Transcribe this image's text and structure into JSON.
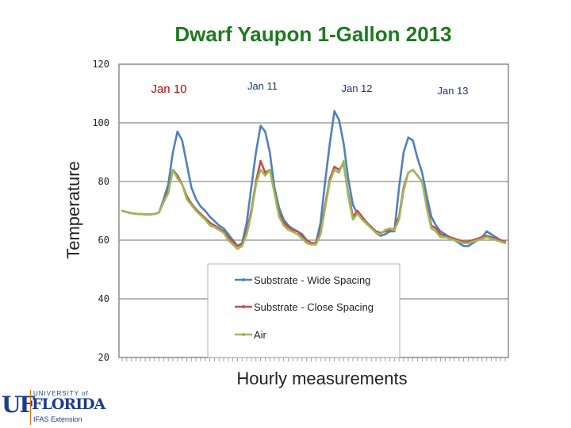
{
  "chart_data": {
    "type": "line",
    "title": "Dwarf Yaupon 1-Gallon 2013",
    "xlabel": "Hourly measurements",
    "ylabel": "Temperature",
    "ylim": [
      20,
      120
    ],
    "yticks": [
      "120",
      "100",
      "80",
      "60",
      "40",
      "20"
    ],
    "day_labels": [
      "Jan 10",
      "Jan 11",
      "Jan 12",
      "Jan 13"
    ],
    "grid": true,
    "legend_position": "center-bottom",
    "hours": 84,
    "series": [
      {
        "name": "Substrate - Wide Spacing",
        "color": "#4f81bd",
        "values": [
          70,
          69.6,
          69.2,
          69,
          68.9,
          68.8,
          68.8,
          68.9,
          69.5,
          74,
          79,
          90,
          97,
          94,
          86,
          78,
          74,
          71.5,
          70,
          68,
          66.5,
          65,
          64,
          62,
          60,
          58,
          59,
          66,
          78,
          90,
          99,
          97,
          90,
          78,
          71,
          67,
          65,
          63.8,
          63,
          62,
          60,
          59,
          59,
          66,
          80,
          93,
          104,
          101,
          93,
          81,
          72,
          69,
          67.5,
          66,
          64.5,
          62.5,
          61.5,
          62,
          63,
          63,
          78,
          90,
          95,
          94,
          88,
          83,
          75,
          68,
          65,
          63,
          62,
          61,
          60,
          59,
          58,
          58,
          59,
          60,
          61,
          63,
          62,
          61,
          60,
          59
        ]
      },
      {
        "name": "Substrate - Close Spacing",
        "color": "#c0504d",
        "values": [
          70,
          69.6,
          69.2,
          69,
          68.9,
          68.8,
          68.8,
          68.9,
          69.5,
          73,
          77,
          84,
          82,
          79,
          75,
          72.5,
          70.5,
          69,
          67.5,
          66,
          65,
          64,
          63,
          61,
          59.5,
          58,
          58.5,
          63,
          70,
          80,
          87,
          83,
          84,
          77,
          69,
          66,
          64.5,
          63.5,
          63,
          61.5,
          60,
          59,
          59,
          63,
          72,
          81,
          85,
          84,
          86,
          76,
          68,
          70,
          68,
          66,
          64.5,
          63,
          62.5,
          63,
          63.5,
          64,
          68,
          78,
          83,
          84,
          82,
          80,
          72,
          65,
          64,
          62,
          61.5,
          61,
          60.5,
          60,
          59.5,
          59.5,
          60,
          60.5,
          61,
          61.5,
          61,
          60.5,
          60,
          59.5
        ]
      },
      {
        "name": "Air",
        "color": "#9bbb59",
        "values": [
          70,
          69.6,
          69.2,
          69,
          68.9,
          68.8,
          68.8,
          68.9,
          69.5,
          73,
          76,
          84,
          81,
          79,
          74,
          72,
          70,
          68.5,
          67,
          65,
          64.5,
          63.5,
          62.5,
          60,
          58.5,
          57,
          58,
          62,
          69,
          79,
          84,
          82,
          84,
          76,
          68,
          65,
          63.5,
          62.8,
          62,
          60.5,
          59,
          58.5,
          58.5,
          62,
          71,
          80,
          84,
          83,
          87,
          75,
          67,
          69,
          67,
          65.5,
          64,
          62.5,
          62,
          63.5,
          64,
          63.5,
          67,
          77,
          83,
          84,
          82,
          80,
          71,
          64,
          63,
          61,
          61,
          60.5,
          60,
          59.5,
          59,
          59,
          59.5,
          60,
          60.5,
          61,
          60.5,
          60,
          59.5,
          59
        ]
      }
    ]
  },
  "logo": {
    "mark": "UF",
    "university": "UNIVERSITY of",
    "name": "FLORIDA",
    "extension": "IFAS Extension"
  }
}
